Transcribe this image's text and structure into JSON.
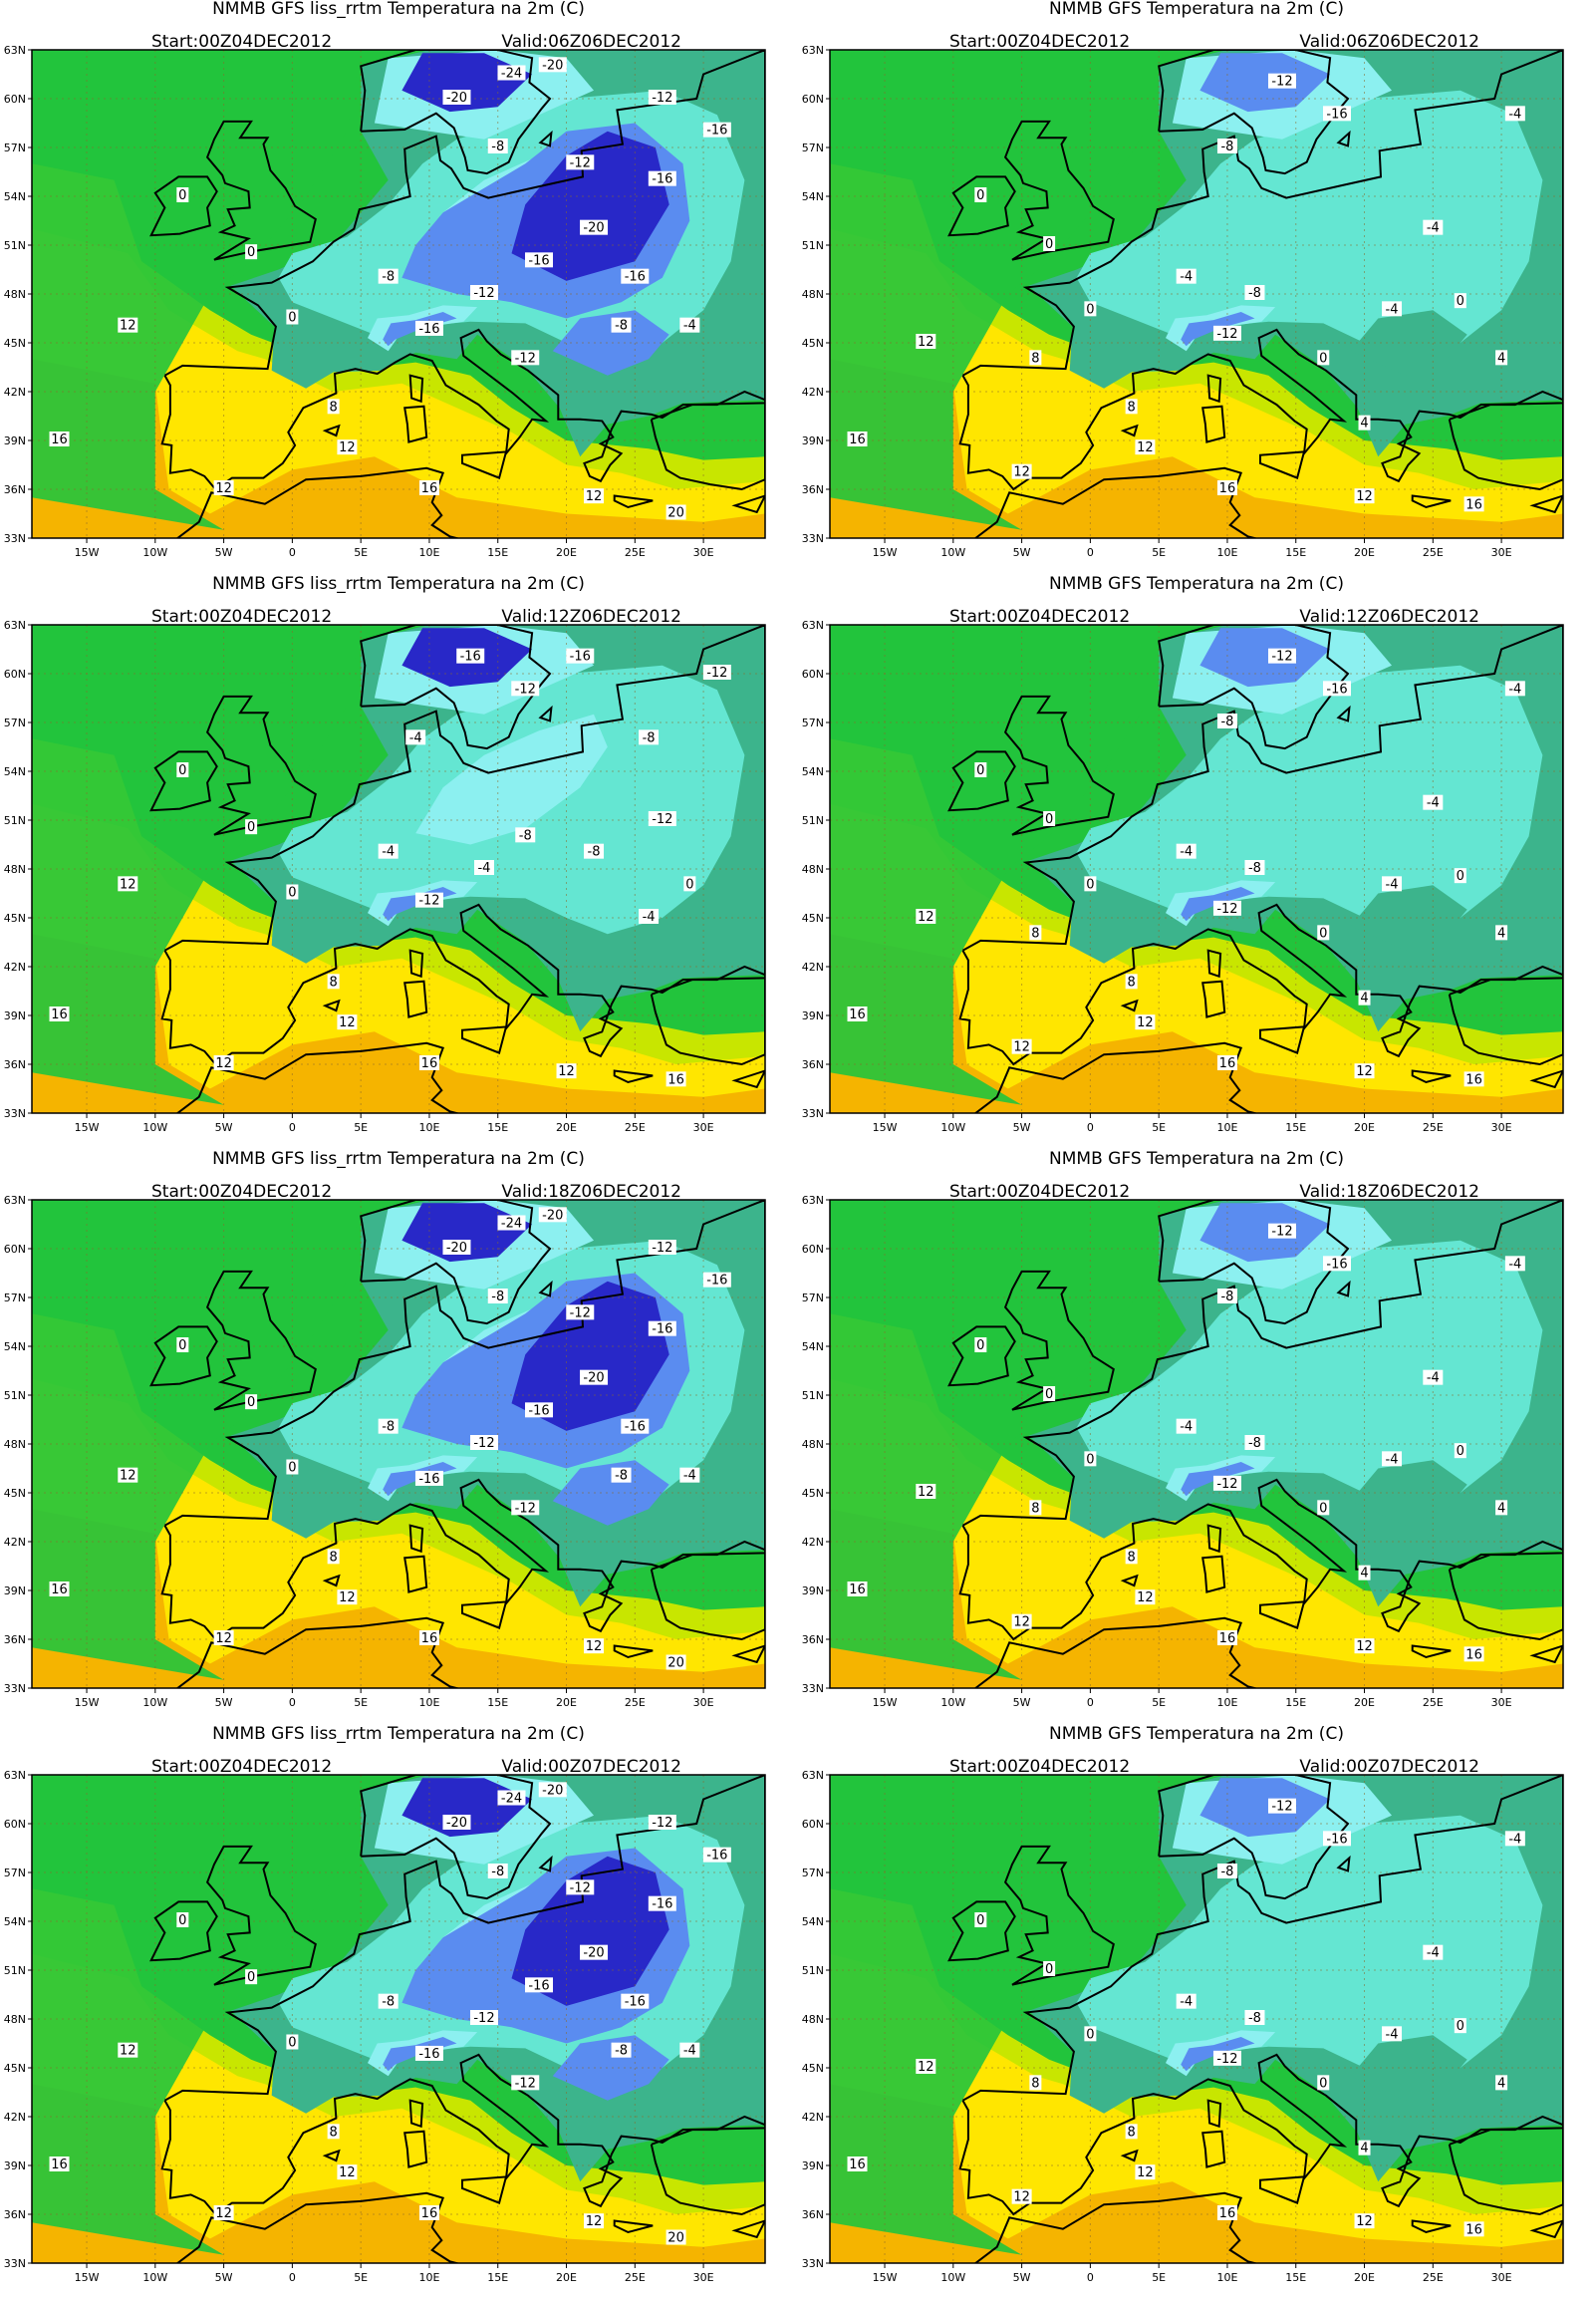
{
  "figure": {
    "lat_ticks": [
      "63N",
      "60N",
      "57N",
      "54N",
      "51N",
      "48N",
      "45N",
      "42N",
      "39N",
      "36N",
      "33N"
    ],
    "lon_ticks": [
      "15W",
      "10W",
      "5W",
      "0",
      "5E",
      "10E",
      "15E",
      "20E",
      "25E",
      "30E"
    ],
    "lat_values": [
      63,
      60,
      57,
      54,
      51,
      48,
      45,
      42,
      39,
      36,
      33
    ],
    "lon_values": [
      -15,
      -10,
      -5,
      0,
      5,
      10,
      15,
      20,
      25,
      30
    ],
    "extent": {
      "lon_min": -19,
      "lon_max": 34.5,
      "lat_min": 33,
      "lat_max": 63
    }
  },
  "panels": [
    {
      "title": "NMMB GFS liss_rrtm  Temperatura na 2m (C)",
      "start": "Start:00Z04DEC2012",
      "valid": "Valid:06Z06DEC2012",
      "cold": 3
    },
    {
      "title": "NMMB GFS    Temperatura na 2m (C)",
      "start": "Start:00Z04DEC2012",
      "valid": "Valid:06Z06DEC2012",
      "cold": 1
    },
    {
      "title": "NMMB GFS liss_rrtm  Temperatura na 2m (C)",
      "start": "Start:00Z04DEC2012",
      "valid": "Valid:12Z06DEC2012",
      "cold": 2
    },
    {
      "title": "NMMB GFS    Temperatura na 2m (C)",
      "start": "Start:00Z04DEC2012",
      "valid": "Valid:12Z06DEC2012",
      "cold": 1
    },
    {
      "title": "NMMB GFS liss_rrtm  Temperatura na 2m (C)",
      "start": "Start:00Z04DEC2012",
      "valid": "Valid:18Z06DEC2012",
      "cold": 3
    },
    {
      "title": "NMMB GFS    Temperatura na 2m (C)",
      "start": "Start:00Z04DEC2012",
      "valid": "Valid:18Z06DEC2012",
      "cold": 1
    },
    {
      "title": "NMMB GFS liss_rrtm  Temperatura na 2m (C)",
      "start": "Start:00Z04DEC2012",
      "valid": "Valid:00Z07DEC2012",
      "cold": 3
    },
    {
      "title": "NMMB GFS    Temperatura na 2m (C)",
      "start": "Start:00Z04DEC2012",
      "valid": "Valid:00Z07DEC2012",
      "cold": 1
    }
  ],
  "contour_labels": [
    "-24",
    "-20",
    "-16",
    "-12",
    "-8",
    "-4",
    "0",
    "4",
    "8",
    "12",
    "16",
    "20"
  ],
  "colors": {
    "ocean_warm": "#f5b400",
    "warm": "#ffe600",
    "mild": "#c8e600",
    "green": "#22c43c",
    "teal": "#3cb48c",
    "cyan": "#64e6d2",
    "lightblue": "#8cf0f0",
    "blue": "#5a8cf0",
    "darkblue": "#2828c8",
    "coast": "#000000"
  }
}
